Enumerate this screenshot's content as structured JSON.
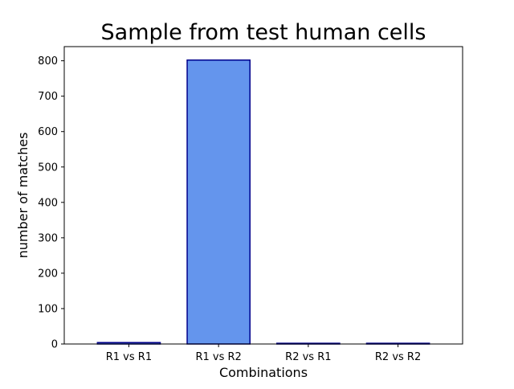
{
  "chart_data": {
    "type": "bar",
    "title": "Sample from test human cells",
    "xlabel": "Combinations",
    "ylabel": "number of matches",
    "categories": [
      "R1 vs R1",
      "R1 vs R2",
      "R2 vs R1",
      "R2 vs R2"
    ],
    "values": [
      4,
      802,
      2,
      2
    ],
    "ylim": [
      0,
      840
    ],
    "yticks": [
      0,
      100,
      200,
      300,
      400,
      500,
      600,
      700,
      800
    ],
    "grid": false,
    "bar_fill": "#6495ED",
    "bar_edge": "#00008B"
  }
}
